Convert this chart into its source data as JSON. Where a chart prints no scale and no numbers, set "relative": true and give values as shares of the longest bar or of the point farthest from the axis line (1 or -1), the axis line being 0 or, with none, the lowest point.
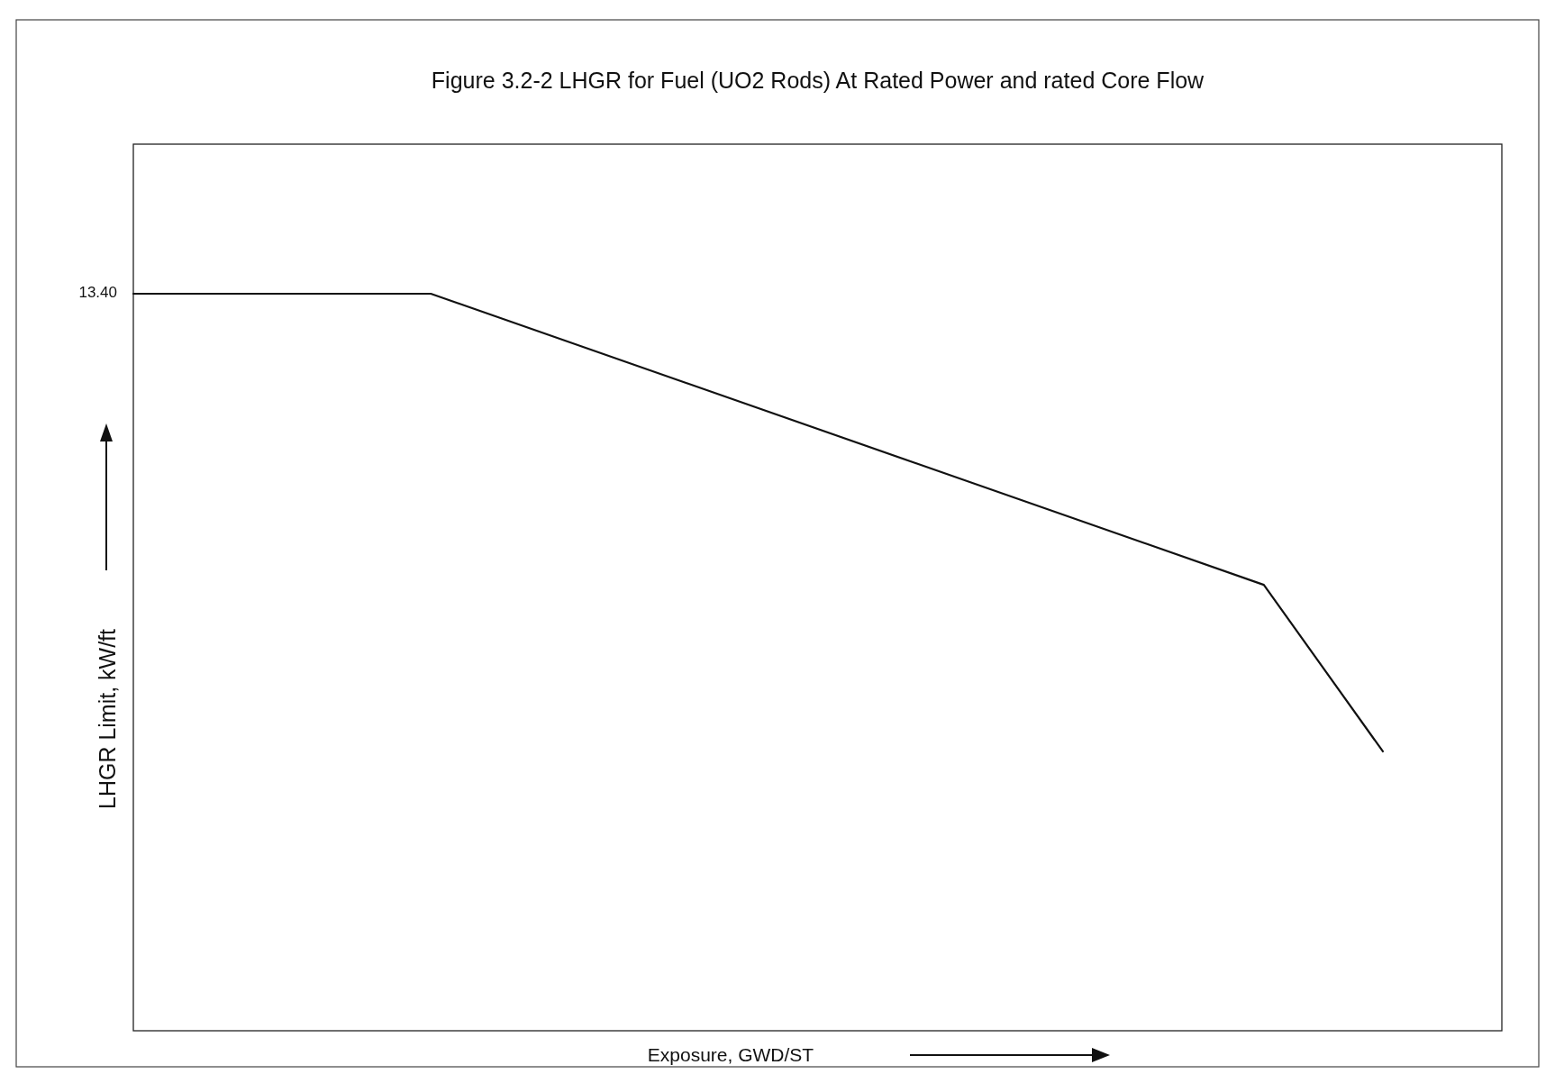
{
  "chart_data": {
    "type": "line",
    "title": "Figure 3.2-2 LHGR for Fuel (UO2 Rods) At Rated Power and rated Core Flow",
    "xlabel": "Exposure, GWD/ST",
    "ylabel": "LHGR Limit, kW/ft",
    "relative": true,
    "categories": [
      null,
      null,
      null,
      null,
      null,
      null,
      null,
      null,
      null,
      null,
      null,
      null,
      null,
      null,
      null,
      null,
      null,
      null,
      null,
      null,
      null,
      null,
      null,
      null
    ],
    "series": [
      {
        "color": "#111111",
        "values": [
          1,
          null,
          null,
          null,
          null,
          1,
          null,
          null,
          null,
          null,
          null,
          null,
          null,
          null,
          null,
          null,
          null,
          null,
          null,
          0.605,
          null,
          0.379,
          null,
          null
        ]
      }
    ],
    "annotations": [
      "13.40"
    ],
    "marker": "none",
    "line_style": "solid"
  }
}
